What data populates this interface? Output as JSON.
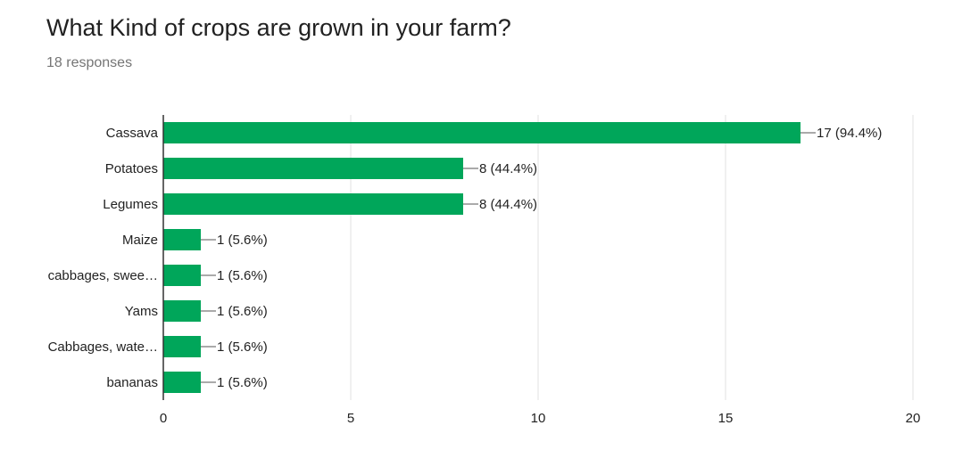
{
  "title": "What Kind of crops are grown in your farm?",
  "subtitle": "18 responses",
  "colors": {
    "bar": "#00a65a",
    "grid": "#e0e0e0",
    "axis": "#333333",
    "text": "#222222"
  },
  "chart_data": {
    "type": "bar",
    "orientation": "horizontal",
    "categories": [
      "Cassava",
      "Potatoes",
      "Legumes",
      "Maize",
      "cabbages, swee…",
      "Yams",
      "Cabbages, wate…",
      "bananas"
    ],
    "values": [
      17,
      8,
      8,
      1,
      1,
      1,
      1,
      1
    ],
    "data_labels": [
      "17 (94.4%)",
      "8 (44.4%)",
      "8 (44.4%)",
      "1 (5.6%)",
      "1 (5.6%)",
      "1 (5.6%)",
      "1 (5.6%)",
      "1 (5.6%)"
    ],
    "xlim": [
      0,
      20
    ],
    "xticks": [
      0,
      5,
      10,
      15,
      20
    ],
    "grid": true,
    "legend": "none"
  }
}
